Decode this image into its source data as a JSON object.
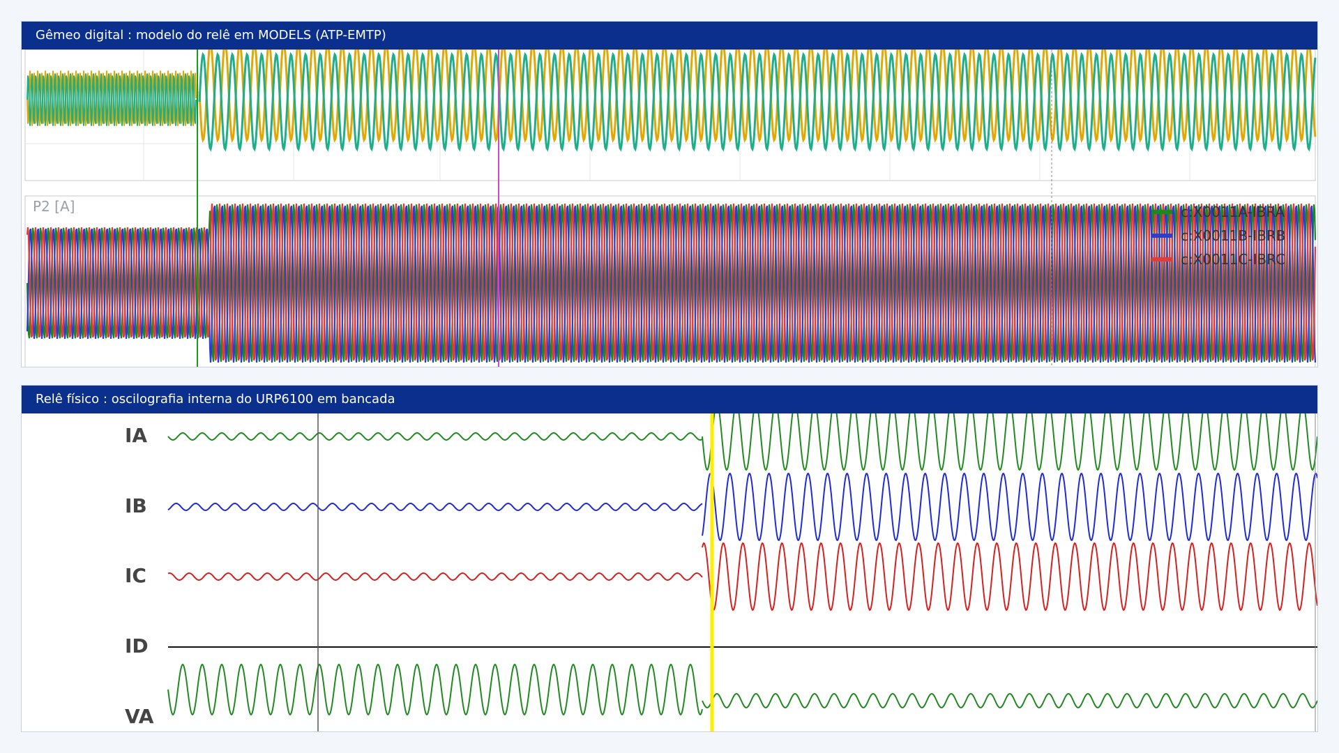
{
  "top_panel": {
    "title": "Gêmeo digital : modelo do relê em MODELS (ATP-EMTP)",
    "subplot_label": "P2 [A]",
    "legend": [
      {
        "label": "c:X0011A-IBRA",
        "color": "#1a8a1a"
      },
      {
        "label": "c:X0011B-IBRB",
        "color": "#2a3fd0"
      },
      {
        "label": "c:X0011C-IBRC",
        "color": "#e33a3a"
      }
    ],
    "series_colors": {
      "phase_a": "#e0a800",
      "phase_b": "#1fae8a",
      "current_a": "#1a8a1a",
      "current_b": "#2a3fd0",
      "current_c": "#e33a3a"
    },
    "marker_color": "#d146c8"
  },
  "bottom_panel": {
    "title": "Relê físico : oscilografia interna do URP6100 em bancada",
    "channels": [
      {
        "label": "IA",
        "color": "#1f8a1f"
      },
      {
        "label": "IB",
        "color": "#1f2bd6"
      },
      {
        "label": "IC",
        "color": "#d62020"
      },
      {
        "label": "ID",
        "color": "#111111"
      },
      {
        "label": "VA",
        "color": "#1f8a1f"
      }
    ],
    "trigger_color": "#ffee00"
  }
}
